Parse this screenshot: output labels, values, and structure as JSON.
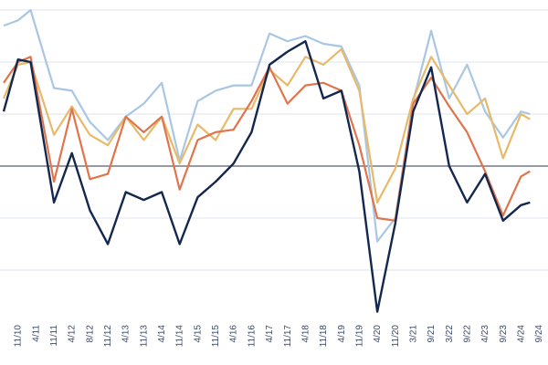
{
  "chart_data": {
    "type": "line",
    "x": [
      "11/10",
      "4/11",
      "11/11",
      "4/12",
      "8/12",
      "11/12",
      "4/13",
      "11/13",
      "4/14",
      "11/14",
      "4/15",
      "11/15",
      "4/16",
      "11/16",
      "4/17",
      "11/17",
      "4/18",
      "11/18",
      "4/19",
      "11/19",
      "4/20",
      "11/20",
      "3/21",
      "9/21",
      "3/22",
      "9/22",
      "4/23",
      "9/23",
      "4/24",
      "9/24"
    ],
    "x_positions": [
      0,
      1,
      2,
      3,
      4,
      5,
      6,
      7,
      8,
      9,
      10,
      11,
      12,
      13,
      14,
      15,
      16,
      17,
      18,
      19,
      20,
      21,
      22,
      23,
      24,
      25,
      26,
      27,
      28,
      29
    ],
    "ylim": [
      -3.0,
      3.0
    ],
    "gridlines": [
      -2,
      -1,
      0,
      1,
      2,
      3
    ],
    "zero_line": true,
    "legend": "none",
    "colors": {
      "light_blue": "#a9c7e2",
      "gold": "#e8b96a",
      "orange": "#e0744c",
      "navy": "#14274e",
      "grid": "#dce3ec",
      "axis": "#2b3448"
    },
    "series": [
      {
        "color": "light_blue",
        "values": [
          [
            -0.8,
            2.7
          ],
          [
            0.0,
            2.8
          ],
          [
            0.7,
            3.0
          ],
          [
            2.0,
            1.5
          ],
          [
            3.0,
            1.45
          ],
          [
            4.0,
            0.85
          ],
          [
            5.0,
            0.5
          ],
          [
            6.0,
            0.95
          ],
          [
            7.0,
            1.2
          ],
          [
            8.0,
            1.6
          ],
          [
            9.0,
            0.1
          ],
          [
            10.0,
            1.25
          ],
          [
            11.0,
            1.45
          ],
          [
            12.0,
            1.55
          ],
          [
            13.0,
            1.55
          ],
          [
            14.0,
            2.55
          ],
          [
            15.0,
            2.4
          ],
          [
            16.0,
            2.5
          ],
          [
            17.0,
            2.35
          ],
          [
            18.0,
            2.3
          ],
          [
            19.0,
            1.55
          ],
          [
            20.0,
            -1.45
          ],
          [
            21.0,
            -1.0
          ],
          [
            22.0,
            1.25
          ],
          [
            23.0,
            2.6
          ],
          [
            24.0,
            1.3
          ],
          [
            25.0,
            1.95
          ],
          [
            26.0,
            1.05
          ],
          [
            27.0,
            0.55
          ],
          [
            28.0,
            1.05
          ],
          [
            28.5,
            1.0
          ]
        ]
      },
      {
        "color": "gold",
        "values": [
          [
            -0.8,
            1.3
          ],
          [
            0.0,
            1.95
          ],
          [
            0.7,
            2.0
          ],
          [
            2.0,
            0.6
          ],
          [
            3.0,
            1.15
          ],
          [
            4.0,
            0.6
          ],
          [
            5.0,
            0.4
          ],
          [
            6.0,
            0.95
          ],
          [
            7.0,
            0.5
          ],
          [
            8.0,
            0.95
          ],
          [
            9.0,
            0.05
          ],
          [
            10.0,
            0.8
          ],
          [
            11.0,
            0.5
          ],
          [
            12.0,
            1.1
          ],
          [
            13.0,
            1.1
          ],
          [
            14.0,
            1.85
          ],
          [
            15.0,
            1.55
          ],
          [
            16.0,
            2.1
          ],
          [
            17.0,
            1.95
          ],
          [
            18.0,
            2.25
          ],
          [
            19.0,
            1.45
          ],
          [
            20.0,
            -0.7
          ],
          [
            21.0,
            -0.05
          ],
          [
            22.0,
            1.3
          ],
          [
            23.0,
            2.1
          ],
          [
            24.0,
            1.55
          ],
          [
            25.0,
            1.0
          ],
          [
            26.0,
            1.3
          ],
          [
            27.0,
            0.15
          ],
          [
            28.0,
            1.0
          ],
          [
            28.5,
            0.9
          ]
        ]
      },
      {
        "color": "orange",
        "values": [
          [
            -0.8,
            1.6
          ],
          [
            0.0,
            2.0
          ],
          [
            0.7,
            2.1
          ],
          [
            2.0,
            -0.3
          ],
          [
            3.0,
            1.1
          ],
          [
            4.0,
            -0.25
          ],
          [
            5.0,
            -0.15
          ],
          [
            6.0,
            0.95
          ],
          [
            7.0,
            0.65
          ],
          [
            8.0,
            0.95
          ],
          [
            9.0,
            -0.45
          ],
          [
            10.0,
            0.5
          ],
          [
            11.0,
            0.65
          ],
          [
            12.0,
            0.7
          ],
          [
            13.0,
            1.25
          ],
          [
            14.0,
            1.9
          ],
          [
            15.0,
            1.2
          ],
          [
            16.0,
            1.55
          ],
          [
            17.0,
            1.6
          ],
          [
            18.0,
            1.45
          ],
          [
            19.0,
            0.4
          ],
          [
            20.0,
            -1.0
          ],
          [
            21.0,
            -1.05
          ],
          [
            22.0,
            1.2
          ],
          [
            23.0,
            1.7
          ],
          [
            24.0,
            1.15
          ],
          [
            25.0,
            0.65
          ],
          [
            26.0,
            -0.1
          ],
          [
            27.0,
            -0.95
          ],
          [
            28.0,
            -0.2
          ],
          [
            28.5,
            -0.1
          ]
        ]
      },
      {
        "color": "navy",
        "values": [
          [
            -0.8,
            1.05
          ],
          [
            0.0,
            2.05
          ],
          [
            0.7,
            2.0
          ],
          [
            2.0,
            -0.7
          ],
          [
            3.0,
            0.25
          ],
          [
            4.0,
            -0.85
          ],
          [
            5.0,
            -1.5
          ],
          [
            6.0,
            -0.5
          ],
          [
            7.0,
            -0.65
          ],
          [
            8.0,
            -0.5
          ],
          [
            9.0,
            -1.5
          ],
          [
            10.0,
            -0.6
          ],
          [
            11.0,
            -0.3
          ],
          [
            12.0,
            0.05
          ],
          [
            13.0,
            0.65
          ],
          [
            14.0,
            1.95
          ],
          [
            15.0,
            2.2
          ],
          [
            16.0,
            2.4
          ],
          [
            17.0,
            1.3
          ],
          [
            18.0,
            1.45
          ],
          [
            19.0,
            -0.1
          ],
          [
            20.0,
            -2.8
          ],
          [
            21.0,
            -1.1
          ],
          [
            22.0,
            1.05
          ],
          [
            23.0,
            1.9
          ],
          [
            24.0,
            0.0
          ],
          [
            25.0,
            -0.7
          ],
          [
            26.0,
            -0.15
          ],
          [
            27.0,
            -1.05
          ],
          [
            28.0,
            -0.75
          ],
          [
            28.5,
            -0.7
          ]
        ]
      }
    ]
  }
}
